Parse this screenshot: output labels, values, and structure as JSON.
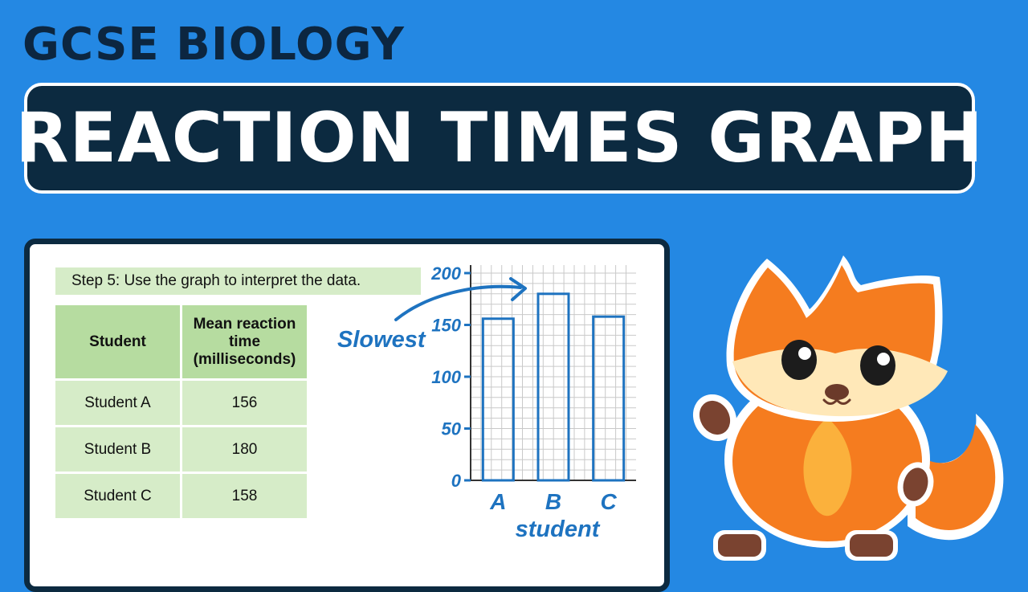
{
  "header": {
    "subject": "GCSE BIOLOGY",
    "title": "REACTION TIMES GRAPH"
  },
  "card": {
    "step_label": "Step 5: Use the graph to interpret the data."
  },
  "table": {
    "headers": [
      "Student",
      "Mean reaction time (milliseconds)"
    ],
    "rows": [
      {
        "name": "Student A",
        "value": "156"
      },
      {
        "name": "Student B",
        "value": "180"
      },
      {
        "name": "Student C",
        "value": "158"
      }
    ]
  },
  "chart_data": {
    "type": "bar",
    "categories": [
      "A",
      "B",
      "C"
    ],
    "values": [
      156,
      180,
      158
    ],
    "xlabel": "student",
    "ylabel": "",
    "ylim": [
      0,
      200
    ],
    "yticks": [
      0,
      50,
      100,
      150,
      200
    ],
    "grid": true,
    "annotation": {
      "text": "Slowest",
      "points_to": "B"
    }
  },
  "colors": {
    "background": "#2488e3",
    "navy": "#0c2a40",
    "chart_blue": "#1e73c0",
    "table_header": "#b6dca0",
    "table_cell": "#d6ecc8",
    "fox_orange": "#f57c1f"
  },
  "icons": {
    "mascot": "fox-mascot"
  }
}
